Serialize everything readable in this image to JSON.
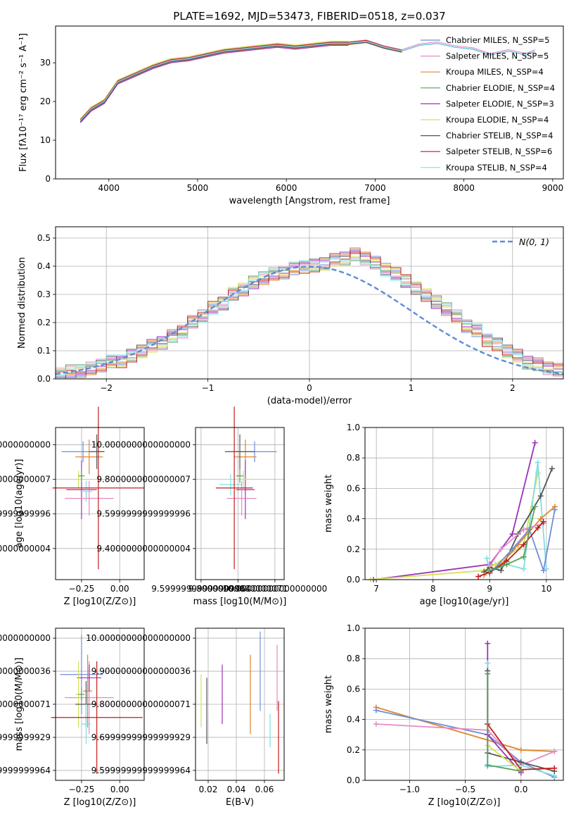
{
  "figure": {
    "title": "PLATE=1692, MJD=53473, FIBERID=0518, z=0.037"
  },
  "colors": {
    "Chabrier MILES": "#6f8fd8",
    "Salpeter MILES": "#e78ac3",
    "Kroupa MILES": "#e0862e",
    "Chabrier ELODIE": "#5a9e5a",
    "Salpeter ELODIE": "#9c32b8",
    "Kroupa ELODIE": "#d4e157",
    "Chabrier STELIB": "#555555",
    "Salpeter STELIB": "#c11d1d",
    "Kroupa STELIB": "#7fdfe0",
    "data": "#777777",
    "normal_curve": "#5b8dd9",
    "grid": "#b0b0b0"
  },
  "chart_data": [
    {
      "id": "spectrum",
      "type": "line",
      "title": "PLATE=1692, MJD=53473, FIBERID=0518, z=0.037",
      "xlabel": "wavelength [Angstrom, rest frame]",
      "ylabel": "Flux [fλ10⁻¹⁷ erg cm⁻² s⁻¹ A⁻¹]",
      "xlim": [
        3400,
        9120
      ],
      "ylim": [
        0,
        39.5
      ],
      "xticks": [
        4000,
        5000,
        6000,
        7000,
        8000,
        9000
      ],
      "yticks": [
        0,
        10,
        20,
        30
      ],
      "grid": false,
      "legend_position": "right",
      "x": [
        3680,
        3800,
        3950,
        4100,
        4300,
        4500,
        4700,
        4900,
        5100,
        5300,
        5500,
        5700,
        5900,
        6100,
        6300,
        6500,
        6700,
        6900,
        7100,
        7300,
        7500,
        7700,
        7900,
        8100,
        8300,
        8500,
        8700,
        8800
      ],
      "y": [
        15,
        18,
        20,
        25,
        27,
        29,
        30.5,
        31,
        32,
        33,
        33.5,
        34,
        34.5,
        34,
        34.5,
        35,
        35,
        35.5,
        34,
        33,
        34.5,
        35,
        34,
        33.5,
        32,
        33,
        32,
        33
      ],
      "series": [
        {
          "name": "Chabrier MILES, N_SSP=5",
          "end_x": 8800
        },
        {
          "name": "Salpeter MILES, N_SSP=5",
          "end_x": 8800
        },
        {
          "name": "Kroupa MILES, N_SSP=4",
          "end_x": 7400
        },
        {
          "name": "Chabrier ELODIE, N_SSP=4",
          "end_x": 6800
        },
        {
          "name": "Salpeter ELODIE, N_SSP=3",
          "end_x": 6800
        },
        {
          "name": "Kroupa ELODIE, N_SSP=4",
          "end_x": 6800
        },
        {
          "name": "Chabrier STELIB, N_SSP=4",
          "end_x": 7400
        },
        {
          "name": "Salpeter STELIB, N_SSP=6",
          "end_x": 7400
        },
        {
          "name": "Kroupa STELIB, N_SSP=4",
          "end_x": 8800
        }
      ]
    },
    {
      "id": "residuals",
      "type": "bar",
      "xlabel": "(data-model)/error",
      "ylabel": "Normed distribution",
      "xlim": [
        -2.5,
        2.5
      ],
      "ylim": [
        0,
        0.54
      ],
      "xticks": [
        -2,
        -1,
        0,
        1,
        2
      ],
      "yticks": [
        0.0,
        0.1,
        0.2,
        0.3,
        0.4,
        0.5
      ],
      "grid": true,
      "legend_position": "top-right",
      "legend": "N(0, 1)",
      "bin_width": 0.1,
      "bin_start": -2.5,
      "values": [
        0.02,
        0.025,
        0.03,
        0.035,
        0.05,
        0.06,
        0.065,
        0.08,
        0.1,
        0.115,
        0.13,
        0.15,
        0.17,
        0.2,
        0.225,
        0.25,
        0.27,
        0.3,
        0.32,
        0.34,
        0.36,
        0.37,
        0.38,
        0.39,
        0.4,
        0.4,
        0.41,
        0.42,
        0.43,
        0.44,
        0.43,
        0.41,
        0.39,
        0.37,
        0.35,
        0.32,
        0.3,
        0.27,
        0.25,
        0.22,
        0.19,
        0.17,
        0.14,
        0.12,
        0.1,
        0.08,
        0.06,
        0.05,
        0.04,
        0.03
      ]
    },
    {
      "id": "age_vs_Z",
      "type": "scatter",
      "xlabel": "Z [log10(Z/Z⊙)]",
      "ylabel": "age  [log10(age/yr)]",
      "xlim": [
        -0.42,
        0.16
      ],
      "ylim": [
        9.22,
        10.1
      ],
      "xticks": [
        -0.25,
        0.0
      ],
      "xtick_labels": [
        "−0.25",
        "0.00"
      ],
      "yticks": [
        9.4,
        9.6,
        9.8,
        10.0
      ],
      "grid": true,
      "points": [
        {
          "series": "Chabrier MILES",
          "x": -0.24,
          "y": 9.96,
          "xerr": 0.14,
          "yerr": 0.06
        },
        {
          "series": "Kroupa MILES",
          "x": -0.2,
          "y": 9.93,
          "xerr": 0.09,
          "yerr": 0.1
        },
        {
          "series": "Chabrier STELIB",
          "x": -0.15,
          "y": 9.96,
          "xerr": 0.05,
          "yerr": 0.1
        },
        {
          "series": "Salpeter ELODIE",
          "x": -0.25,
          "y": 9.74,
          "xerr": 0.1,
          "yerr": 0.17
        },
        {
          "series": "Kroupa ELODIE",
          "x": -0.27,
          "y": 9.8,
          "xerr": 0.04,
          "yerr": 0.05
        },
        {
          "series": "Chabrier ELODIE",
          "x": -0.25,
          "y": 9.82,
          "xerr": 0.02,
          "yerr": 0.04
        },
        {
          "series": "Kroupa STELIB",
          "x": -0.22,
          "y": 9.73,
          "xerr": 0.04,
          "yerr": 0.06
        },
        {
          "series": "Salpeter MILES",
          "x": -0.2,
          "y": 9.69,
          "xerr": 0.16,
          "yerr": 0.1
        },
        {
          "series": "Salpeter STELIB",
          "x": -0.14,
          "y": 9.75,
          "xerr": 0.3,
          "yerr": 0.47
        }
      ]
    },
    {
      "id": "age_vs_mass",
      "type": "scatter",
      "xlabel": "mass [log10(M/M⊙)]",
      "xlim": [
        9.57,
        10.05
      ],
      "ylim": [
        9.22,
        10.1
      ],
      "xticks": [
        9.6,
        9.8,
        10.0
      ],
      "yticks": [
        9.4,
        9.6,
        9.8,
        10.0
      ],
      "grid": true,
      "points": [
        {
          "series": "Chabrier MILES",
          "x": 9.89,
          "y": 9.96,
          "xerr": 0.12,
          "yerr": 0.06
        },
        {
          "series": "Kroupa MILES",
          "x": 9.84,
          "y": 9.93,
          "xerr": 0.06,
          "yerr": 0.1
        },
        {
          "series": "Chabrier STELIB",
          "x": 9.81,
          "y": 9.96,
          "xerr": 0.08,
          "yerr": 0.1
        },
        {
          "series": "Salpeter ELODIE",
          "x": 9.84,
          "y": 9.74,
          "xerr": 0.05,
          "yerr": 0.17
        },
        {
          "series": "Kroupa ELODIE",
          "x": 9.83,
          "y": 9.8,
          "xerr": 0.04,
          "yerr": 0.05
        },
        {
          "series": "Chabrier ELODIE",
          "x": 9.81,
          "y": 9.82,
          "xerr": 0.02,
          "yerr": 0.04
        },
        {
          "series": "Kroupa STELIB",
          "x": 9.76,
          "y": 9.77,
          "xerr": 0.06,
          "yerr": 0.06
        },
        {
          "series": "Salpeter MILES",
          "x": 9.82,
          "y": 9.69,
          "xerr": 0.08,
          "yerr": 0.1
        },
        {
          "series": "Salpeter STELIB",
          "x": 9.78,
          "y": 9.75,
          "xerr": 0.1,
          "yerr": 0.47
        }
      ]
    },
    {
      "id": "weight_vs_age",
      "type": "line",
      "xlabel": "age  [log10(age/yr)]",
      "ylabel": "mass weight",
      "xlim": [
        6.8,
        10.3
      ],
      "ylim": [
        0,
        1.0
      ],
      "xticks": [
        7,
        8,
        9,
        10
      ],
      "yticks": [
        0.0,
        0.2,
        0.4,
        0.6,
        0.8,
        1.0
      ],
      "grid": true,
      "series": [
        {
          "name": "Salpeter ELODIE",
          "x": [
            6.95,
            9.0,
            9.4,
            9.8
          ],
          "y": [
            0.0,
            0.1,
            0.3,
            0.9
          ]
        },
        {
          "name": "Kroupa ELODIE",
          "x": [
            6.9,
            8.9,
            9.1,
            9.6,
            9.85
          ],
          "y": [
            0.0,
            0.06,
            0.1,
            0.23,
            0.7
          ]
        },
        {
          "name": "Kroupa STELIB",
          "x": [
            8.95,
            9.0,
            9.3,
            9.6,
            9.85,
            10.0
          ],
          "y": [
            0.14,
            0.05,
            0.1,
            0.07,
            0.77,
            0.07
          ]
        },
        {
          "name": "Chabrier STELIB",
          "x": [
            8.9,
            9.0,
            9.2,
            9.5,
            9.9,
            10.1
          ],
          "y": [
            0.05,
            0.08,
            0.06,
            0.3,
            0.55,
            0.73
          ]
        },
        {
          "name": "Kroupa MILES",
          "x": [
            8.9,
            9.2,
            9.5,
            9.9,
            10.15
          ],
          "y": [
            0.03,
            0.1,
            0.23,
            0.4,
            0.48
          ]
        },
        {
          "name": "Chabrier MILES",
          "x": [
            9.0,
            9.4,
            9.7,
            9.95,
            10.15
          ],
          "y": [
            0.04,
            0.2,
            0.33,
            0.06,
            0.46
          ]
        },
        {
          "name": "Salpeter MILES",
          "x": [
            9.0,
            9.2,
            9.6,
            9.95
          ],
          "y": [
            0.09,
            0.2,
            0.33,
            0.37
          ]
        },
        {
          "name": "Salpeter STELIB",
          "x": [
            8.8,
            9.0,
            9.3,
            9.6,
            9.85,
            9.95
          ],
          "y": [
            0.02,
            0.05,
            0.12,
            0.23,
            0.34,
            0.38
          ]
        },
        {
          "name": "Chabrier ELODIE",
          "x": [
            9.0,
            9.3,
            9.6,
            9.8
          ],
          "y": [
            0.06,
            0.1,
            0.15,
            0.48
          ]
        }
      ]
    },
    {
      "id": "mass_vs_Z",
      "type": "scatter",
      "xlabel": "Z [log10(Z/Z⊙)]",
      "ylabel": "mass [log10(M/M⊙)]",
      "xlim": [
        -0.42,
        0.16
      ],
      "ylim": [
        9.57,
        10.03
      ],
      "xticks": [
        -0.25,
        0.0
      ],
      "xtick_labels": [
        "−0.25",
        "0.00"
      ],
      "yticks": [
        9.6,
        9.7,
        9.8,
        9.9,
        10.0
      ],
      "grid": true,
      "points": [
        {
          "series": "Chabrier MILES",
          "x": -0.25,
          "y": 9.89,
          "xerr": 0.14,
          "yerr": 0.12
        },
        {
          "series": "Salpeter MILES",
          "x": -0.2,
          "y": 9.82,
          "xerr": 0.16,
          "yerr": 0.11
        },
        {
          "series": "Kroupa MILES",
          "x": -0.21,
          "y": 9.84,
          "xerr": 0.03,
          "yerr": 0.11
        },
        {
          "series": "Salpeter ELODIE",
          "x": -0.2,
          "y": 9.88,
          "xerr": 0.08,
          "yerr": 0.04
        },
        {
          "series": "Kroupa ELODIE",
          "x": -0.27,
          "y": 9.83,
          "xerr": 0.02,
          "yerr": 0.1
        },
        {
          "series": "Chabrier ELODIE",
          "x": -0.25,
          "y": 9.83,
          "xerr": 0.02,
          "yerr": 0.02
        },
        {
          "series": "Chabrier STELIB",
          "x": -0.22,
          "y": 9.8,
          "xerr": 0.07,
          "yerr": 0.07
        },
        {
          "series": "Kroupa STELIB",
          "x": -0.22,
          "y": 9.74,
          "xerr": 0.03,
          "yerr": 0.06
        },
        {
          "series": "Salpeter STELIB",
          "x": -0.15,
          "y": 9.76,
          "xerr": 0.3,
          "yerr": 0.17
        }
      ]
    },
    {
      "id": "mass_vs_ebv",
      "type": "scatter",
      "xlabel": "E(B-V)",
      "xlim": [
        0.011,
        0.074
      ],
      "ylim": [
        9.57,
        10.03
      ],
      "xticks": [
        0.02,
        0.04,
        0.06
      ],
      "yticks": [
        9.6,
        9.7,
        9.8,
        9.9,
        10.0
      ],
      "grid": true,
      "points": [
        {
          "series": "Kroupa ELODIE",
          "x": 0.015,
          "y": 9.81,
          "yerr": 0.08
        },
        {
          "series": "Chabrier STELIB",
          "x": 0.019,
          "y": 9.78,
          "yerr": 0.1
        },
        {
          "series": "Salpeter ELODIE",
          "x": 0.03,
          "y": 9.83,
          "yerr": 0.09
        },
        {
          "series": "Kroupa MILES",
          "x": 0.05,
          "y": 9.83,
          "yerr": 0.12
        },
        {
          "series": "Chabrier MILES",
          "x": 0.057,
          "y": 9.9,
          "yerr": 0.12
        },
        {
          "series": "Kroupa STELIB",
          "x": 0.064,
          "y": 9.72,
          "yerr": 0.05
        },
        {
          "series": "Salpeter MILES",
          "x": 0.069,
          "y": 9.88,
          "yerr": 0.1
        },
        {
          "series": "Salpeter STELIB",
          "x": 0.07,
          "y": 9.7,
          "yerr": 0.11
        }
      ]
    },
    {
      "id": "weight_vs_Z",
      "type": "line",
      "xlabel": "Z [log10(Z/Z⊙)]",
      "ylabel": "mass weight",
      "xlim": [
        -1.4,
        0.38
      ],
      "ylim": [
        0,
        1.0
      ],
      "xticks": [
        -1.0,
        -0.5,
        0.0
      ],
      "xtick_labels": [
        "−1.0",
        "−0.5",
        "0.0"
      ],
      "yticks": [
        0.0,
        0.2,
        0.4,
        0.6,
        0.8,
        1.0
      ],
      "grid": true,
      "series": [
        {
          "name": "Kroupa MILES",
          "x": [
            -1.3,
            0.0,
            0.3
          ],
          "y": [
            0.48,
            0.2,
            0.19
          ]
        },
        {
          "name": "Chabrier MILES",
          "x": [
            -1.3,
            -0.3,
            0.0,
            0.3
          ],
          "y": [
            0.46,
            0.3,
            0.12,
            0.02
          ]
        },
        {
          "name": "Salpeter MILES",
          "x": [
            -1.3,
            -0.3,
            0.0,
            0.3
          ],
          "y": [
            0.37,
            0.33,
            0.1,
            0.19
          ]
        },
        {
          "name": "Salpeter ELODIE",
          "x": [
            -0.3,
            -0.3,
            0.0
          ],
          "y": [
            0.9,
            0.3,
            0.05
          ]
        },
        {
          "name": "Kroupa STELIB",
          "x": [
            -0.3,
            -0.3,
            0.0,
            0.3
          ],
          "y": [
            0.77,
            0.09,
            0.1,
            0.03
          ]
        },
        {
          "name": "Chabrier STELIB",
          "x": [
            -0.3,
            -0.3,
            0.0,
            0.3
          ],
          "y": [
            0.72,
            0.18,
            0.12,
            0.06
          ]
        },
        {
          "name": "Salpeter STELIB",
          "x": [
            -0.3,
            0.0,
            0.3
          ],
          "y": [
            0.37,
            0.07,
            0.08
          ]
        },
        {
          "name": "Kroupa ELODIE",
          "x": [
            -0.3,
            0.0
          ],
          "y": [
            0.23,
            0.06
          ]
        },
        {
          "name": "Chabrier ELODIE",
          "x": [
            -0.3,
            -0.3,
            0.0
          ],
          "y": [
            0.7,
            0.1,
            0.06
          ]
        }
      ]
    }
  ]
}
